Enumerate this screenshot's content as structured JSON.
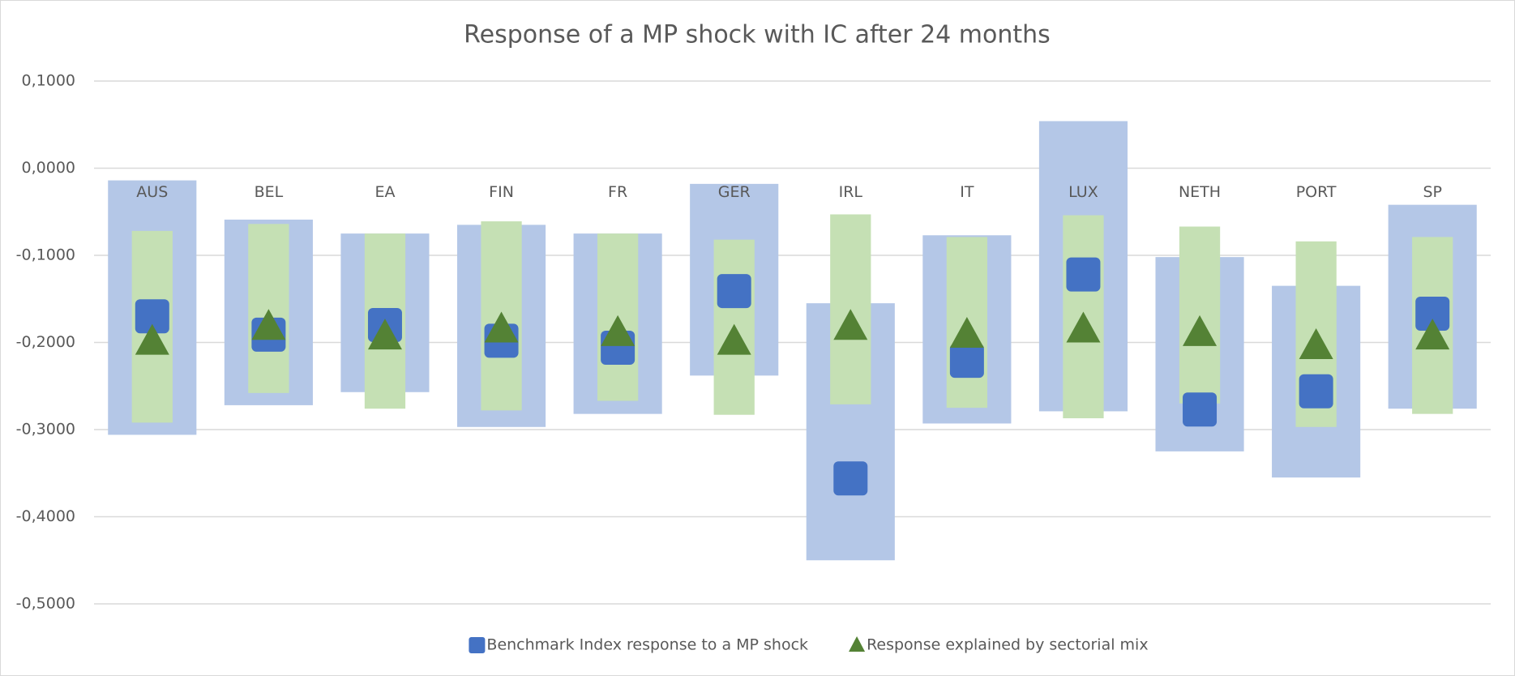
{
  "chart_data": {
    "type": "range-marker",
    "title": "Response of a MP shock with IC after 24 months",
    "categories": [
      "AUS",
      "BEL",
      "EA",
      "FIN",
      "FR",
      "GER",
      "IRL",
      "IT",
      "LUX",
      "NETH",
      "PORT",
      "SP"
    ],
    "series": [
      {
        "name": "Benchmark Index response to a MP shock",
        "color": "#4472c4",
        "marker": "square",
        "values": [
          -0.17,
          -0.191,
          -0.18,
          -0.198,
          -0.206,
          -0.141,
          -0.356,
          -0.221,
          -0.122,
          -0.277,
          -0.256,
          -0.167
        ],
        "range_color": "#b4c7e7",
        "low": [
          -0.306,
          -0.272,
          -0.257,
          -0.297,
          -0.282,
          -0.238,
          -0.45,
          -0.293,
          -0.279,
          -0.325,
          -0.355,
          -0.276
        ],
        "high": [
          -0.014,
          -0.059,
          -0.075,
          -0.065,
          -0.075,
          -0.018,
          -0.155,
          -0.077,
          0.054,
          -0.102,
          -0.135,
          -0.042
        ]
      },
      {
        "name": "Response explained by sectorial mix",
        "color": "#548235",
        "marker": "triangle",
        "values": [
          -0.201,
          -0.184,
          -0.195,
          -0.187,
          -0.191,
          -0.201,
          -0.184,
          -0.193,
          -0.187,
          -0.191,
          -0.206,
          -0.195
        ],
        "range_color": "#c5e0b4",
        "low": [
          -0.292,
          -0.258,
          -0.276,
          -0.278,
          -0.267,
          -0.283,
          -0.271,
          -0.275,
          -0.287,
          -0.27,
          -0.297,
          -0.282
        ],
        "high": [
          -0.072,
          -0.064,
          -0.075,
          -0.061,
          -0.075,
          -0.082,
          -0.053,
          -0.079,
          -0.054,
          -0.067,
          -0.084,
          -0.079
        ]
      }
    ],
    "ylim": [
      -0.5,
      0.1
    ],
    "yticks": [
      {
        "value": -0.5,
        "label": "-0,5000"
      },
      {
        "value": -0.4,
        "label": "-0,4000"
      },
      {
        "value": -0.3,
        "label": "-0,3000"
      },
      {
        "value": -0.2,
        "label": "-0,2000"
      },
      {
        "value": -0.1,
        "label": "-0,1000"
      },
      {
        "value": 0,
        "label": "0,0000"
      },
      {
        "value": 0.1,
        "label": "0,1000"
      }
    ],
    "grid": true,
    "legend": "bottom"
  }
}
